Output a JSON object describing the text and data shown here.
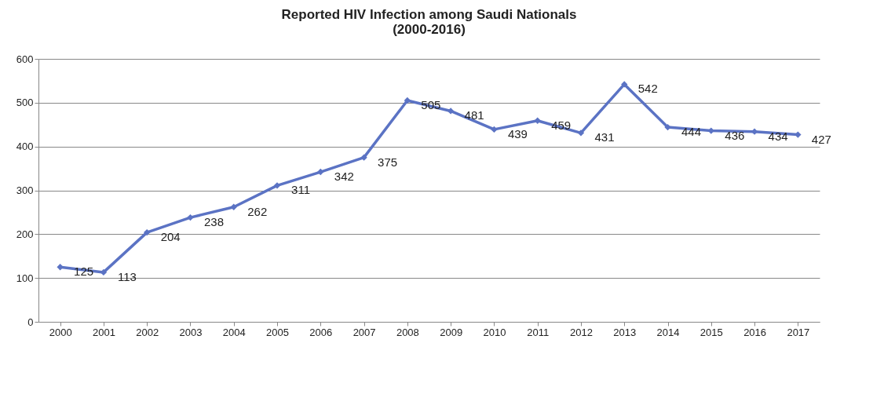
{
  "chart_data": {
    "type": "line",
    "title": [
      "Reported HIV Infection among Saudi Nationals",
      "(2000-2016)"
    ],
    "categories": [
      "2000",
      "2001",
      "2002",
      "2003",
      "2004",
      "2005",
      "2006",
      "2007",
      "2008",
      "2009",
      "2010",
      "2011",
      "2012",
      "2013",
      "2014",
      "2015",
      "2016",
      "2017"
    ],
    "series": [
      {
        "color": "#5b73c4",
        "values": [
          125,
          113,
          204,
          238,
          262,
          311,
          342,
          375,
          505,
          481,
          439,
          459,
          431,
          542,
          444,
          436,
          434,
          427
        ]
      }
    ],
    "ylim": [
      0,
      600
    ],
    "yticks": [
      0,
      100,
      200,
      300,
      400,
      500,
      600
    ],
    "grid": "y",
    "marker": "diamond",
    "data_labels": true,
    "legend": false
  }
}
